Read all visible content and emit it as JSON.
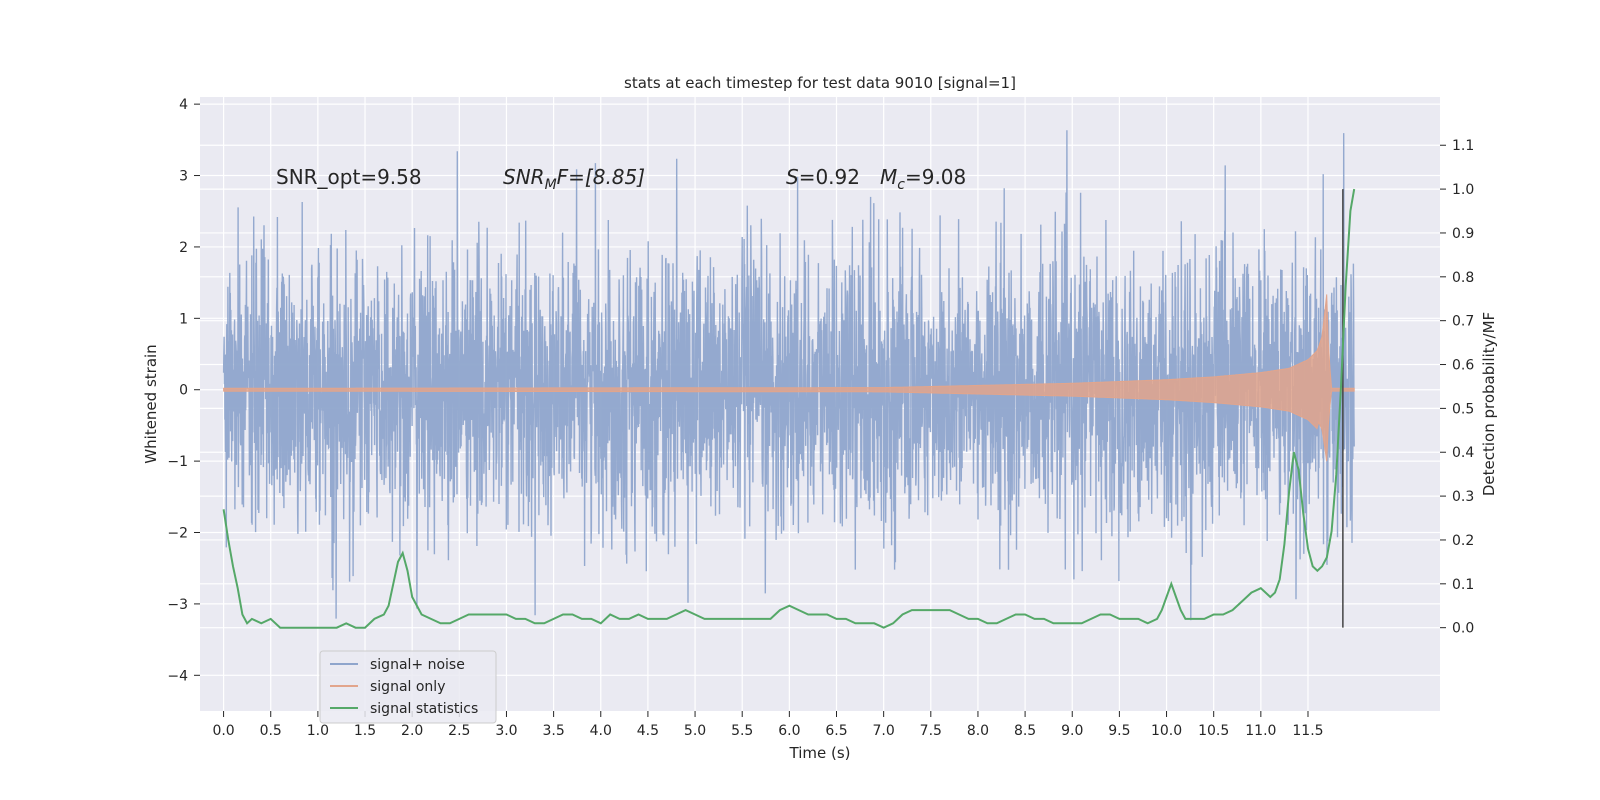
{
  "chart_data": {
    "type": "line",
    "title": "stats at each timestep for test data 9010 [signal=1]",
    "xlabel": "Time (s)",
    "ylabel_left": "Whitened strain",
    "ylabel_right": "Detection probability/MF",
    "xlim": [
      -0.25,
      12.9
    ],
    "ylim_left": [
      -4.5,
      4.1
    ],
    "ylim_right": [
      -0.19,
      1.21
    ],
    "x_ticks": [
      "0.0",
      "0.5",
      "1.0",
      "1.5",
      "2.0",
      "2.5",
      "3.0",
      "3.5",
      "4.0",
      "4.5",
      "5.0",
      "5.5",
      "6.0",
      "6.5",
      "7.0",
      "7.5",
      "8.0",
      "8.5",
      "9.0",
      "9.5",
      "10.0",
      "10.5",
      "11.0",
      "11.5"
    ],
    "x_tick_values": [
      0.0,
      0.5,
      1.0,
      1.5,
      2.0,
      2.5,
      3.0,
      3.5,
      4.0,
      4.5,
      5.0,
      5.5,
      6.0,
      6.5,
      7.0,
      7.5,
      8.0,
      8.5,
      9.0,
      9.5,
      10.0,
      10.5,
      11.0,
      11.5
    ],
    "left_ticks": [
      "−4",
      "−3",
      "−2",
      "−1",
      "0",
      "1",
      "2",
      "3",
      "4"
    ],
    "left_tick_values": [
      -4,
      -3,
      -2,
      -1,
      0,
      1,
      2,
      3,
      4
    ],
    "right_ticks": [
      "0.0",
      "0.1",
      "0.2",
      "0.3",
      "0.4",
      "0.5",
      "0.6",
      "0.7",
      "0.8",
      "0.9",
      "1.0",
      "1.1"
    ],
    "right_tick_values": [
      0.0,
      0.1,
      0.2,
      0.3,
      0.4,
      0.5,
      0.6,
      0.7,
      0.8,
      0.9,
      1.0,
      1.1
    ],
    "grid": true,
    "legend_position": "lower-left",
    "vertical_marker_x": 11.87,
    "annotations": {
      "snr_opt": "SNR_opt=9.58",
      "snr_mf_sym": "SNR",
      "snr_mf_sub": "M",
      "snr_mf_rest": "F=[8.85]",
      "s_sym": "S",
      "s_rest": "=0.92",
      "mc_sym": "M",
      "mc_sub": "c",
      "mc_rest": "=9.08"
    },
    "series": [
      {
        "name": "signal+ noise",
        "axis": "left",
        "color": "#8fa5cc",
        "description_range": [
          -4.1,
          3.8
        ],
        "x_range": [
          0.0,
          11.99
        ]
      },
      {
        "name": "signal only",
        "axis": "left",
        "color": "#e2a58c",
        "x_range": [
          0.0,
          11.99
        ],
        "envelope_x": [
          0.0,
          7.0,
          8.0,
          9.0,
          10.0,
          10.5,
          11.0,
          11.3,
          11.5,
          11.6,
          11.65,
          11.7,
          11.72,
          11.75,
          11.99
        ],
        "envelope_amp": [
          0.02,
          0.03,
          0.06,
          0.09,
          0.14,
          0.18,
          0.24,
          0.3,
          0.42,
          0.55,
          0.75,
          1.35,
          0.5,
          0.02,
          0.02
        ]
      },
      {
        "name": "signal statistics",
        "axis": "right",
        "color": "#55a868",
        "x": [
          0.0,
          0.05,
          0.1,
          0.15,
          0.2,
          0.25,
          0.3,
          0.4,
          0.5,
          0.6,
          0.7,
          0.8,
          0.9,
          1.0,
          1.1,
          1.2,
          1.3,
          1.4,
          1.5,
          1.6,
          1.7,
          1.75,
          1.8,
          1.85,
          1.9,
          1.95,
          2.0,
          2.1,
          2.2,
          2.3,
          2.4,
          2.5,
          2.6,
          2.7,
          2.8,
          2.9,
          3.0,
          3.1,
          3.2,
          3.3,
          3.4,
          3.5,
          3.6,
          3.7,
          3.8,
          3.9,
          4.0,
          4.1,
          4.2,
          4.3,
          4.4,
          4.5,
          4.6,
          4.7,
          4.8,
          4.9,
          5.0,
          5.1,
          5.2,
          5.3,
          5.4,
          5.5,
          5.6,
          5.7,
          5.8,
          5.9,
          6.0,
          6.1,
          6.2,
          6.3,
          6.4,
          6.5,
          6.6,
          6.7,
          6.8,
          6.9,
          7.0,
          7.1,
          7.2,
          7.3,
          7.4,
          7.5,
          7.6,
          7.7,
          7.8,
          7.9,
          8.0,
          8.1,
          8.2,
          8.3,
          8.4,
          8.5,
          8.6,
          8.7,
          8.8,
          8.9,
          9.0,
          9.1,
          9.2,
          9.3,
          9.4,
          9.5,
          9.6,
          9.7,
          9.8,
          9.9,
          9.95,
          10.0,
          10.05,
          10.1,
          10.15,
          10.2,
          10.3,
          10.4,
          10.5,
          10.6,
          10.7,
          10.8,
          10.9,
          11.0,
          11.05,
          11.1,
          11.15,
          11.2,
          11.25,
          11.3,
          11.35,
          11.4,
          11.45,
          11.5,
          11.55,
          11.6,
          11.65,
          11.7,
          11.75,
          11.8,
          11.85,
          11.9,
          11.95,
          11.99
        ],
        "y": [
          0.27,
          0.2,
          0.14,
          0.09,
          0.03,
          0.01,
          0.02,
          0.01,
          0.02,
          0.0,
          0.0,
          0.0,
          0.0,
          0.0,
          0.0,
          0.0,
          0.01,
          0.0,
          0.0,
          0.02,
          0.03,
          0.05,
          0.1,
          0.15,
          0.17,
          0.13,
          0.07,
          0.03,
          0.02,
          0.01,
          0.01,
          0.02,
          0.03,
          0.03,
          0.03,
          0.03,
          0.03,
          0.02,
          0.02,
          0.01,
          0.01,
          0.02,
          0.03,
          0.03,
          0.02,
          0.02,
          0.01,
          0.03,
          0.02,
          0.02,
          0.03,
          0.02,
          0.02,
          0.02,
          0.03,
          0.04,
          0.03,
          0.02,
          0.02,
          0.02,
          0.02,
          0.02,
          0.02,
          0.02,
          0.02,
          0.04,
          0.05,
          0.04,
          0.03,
          0.03,
          0.03,
          0.02,
          0.02,
          0.01,
          0.01,
          0.01,
          0.0,
          0.01,
          0.03,
          0.04,
          0.04,
          0.04,
          0.04,
          0.04,
          0.03,
          0.02,
          0.02,
          0.01,
          0.01,
          0.02,
          0.03,
          0.03,
          0.02,
          0.02,
          0.01,
          0.01,
          0.01,
          0.01,
          0.02,
          0.03,
          0.03,
          0.02,
          0.02,
          0.02,
          0.01,
          0.02,
          0.04,
          0.07,
          0.1,
          0.07,
          0.04,
          0.02,
          0.02,
          0.02,
          0.03,
          0.03,
          0.04,
          0.06,
          0.08,
          0.09,
          0.08,
          0.07,
          0.08,
          0.11,
          0.19,
          0.31,
          0.4,
          0.36,
          0.26,
          0.18,
          0.14,
          0.13,
          0.14,
          0.16,
          0.22,
          0.35,
          0.55,
          0.78,
          0.95,
          1.0
        ]
      }
    ]
  }
}
